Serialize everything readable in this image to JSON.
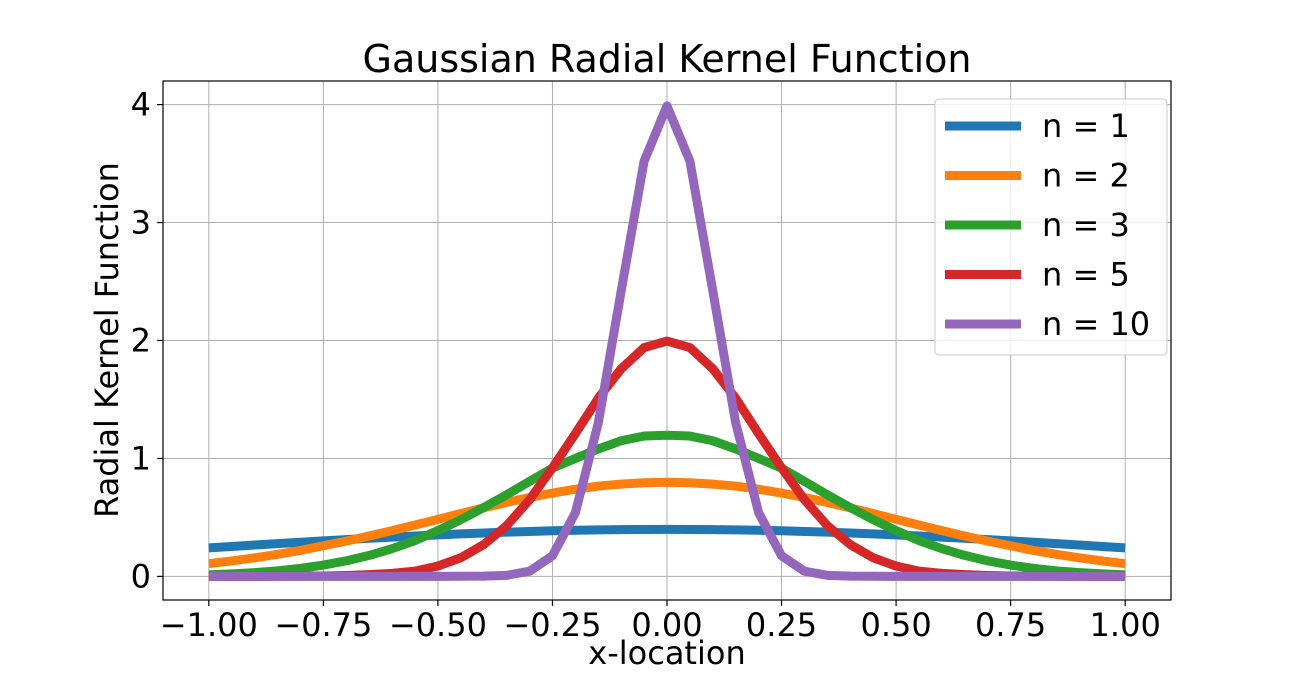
{
  "chart_data": {
    "type": "line",
    "title": "Gaussian Radial Kernel Function",
    "xlabel": "x-location",
    "ylabel": "Radial Kernel Function",
    "xlim": [
      -1.1,
      1.1
    ],
    "ylim": [
      -0.2,
      4.2
    ],
    "xticks": [
      -1.0,
      -0.75,
      -0.5,
      -0.25,
      0.0,
      0.25,
      0.5,
      0.75,
      1.0
    ],
    "xtick_labels": [
      "−1.00",
      "−0.75",
      "−0.50",
      "−0.25",
      "0.00",
      "0.25",
      "0.50",
      "0.75",
      "1.00"
    ],
    "yticks": [
      0,
      1,
      2,
      3,
      4
    ],
    "ytick_labels": [
      "0",
      "1",
      "2",
      "3",
      "4"
    ],
    "grid": true,
    "legend_position": "top-right",
    "x": [
      -1.0,
      -0.95,
      -0.9,
      -0.85,
      -0.8,
      -0.75,
      -0.7,
      -0.65,
      -0.6,
      -0.55,
      -0.5,
      -0.45,
      -0.4,
      -0.35,
      -0.3,
      -0.25,
      -0.2,
      -0.15,
      -0.1,
      -0.05,
      0.0,
      0.05,
      0.1,
      0.15,
      0.2,
      0.25,
      0.3,
      0.35,
      0.4,
      0.45,
      0.5,
      0.55,
      0.6,
      0.65,
      0.7,
      0.75,
      0.8,
      0.85,
      0.9,
      0.95,
      1.0
    ],
    "series": [
      {
        "name": "n = 1",
        "color": "#1f77b4",
        "values": [
          0.242,
          0.254,
          0.266,
          0.278,
          0.29,
          0.301,
          0.312,
          0.323,
          0.333,
          0.343,
          0.352,
          0.361,
          0.368,
          0.375,
          0.381,
          0.387,
          0.391,
          0.394,
          0.397,
          0.398,
          0.399,
          0.398,
          0.397,
          0.394,
          0.391,
          0.387,
          0.381,
          0.375,
          0.368,
          0.361,
          0.352,
          0.343,
          0.333,
          0.323,
          0.312,
          0.301,
          0.29,
          0.278,
          0.266,
          0.254,
          0.242
        ]
      },
      {
        "name": "n = 2",
        "color": "#ff7f0e",
        "values": [
          0.108,
          0.131,
          0.158,
          0.187,
          0.22,
          0.26,
          0.299,
          0.343,
          0.388,
          0.436,
          0.484,
          0.533,
          0.581,
          0.627,
          0.669,
          0.707,
          0.739,
          0.766,
          0.782,
          0.794,
          0.798,
          0.794,
          0.782,
          0.766,
          0.739,
          0.707,
          0.669,
          0.627,
          0.581,
          0.533,
          0.484,
          0.436,
          0.388,
          0.343,
          0.299,
          0.26,
          0.22,
          0.187,
          0.158,
          0.131,
          0.108
        ]
      },
      {
        "name": "n = 3",
        "color": "#2ca02c",
        "values": [
          0.013,
          0.021,
          0.032,
          0.047,
          0.068,
          0.096,
          0.132,
          0.178,
          0.235,
          0.303,
          0.389,
          0.481,
          0.584,
          0.692,
          0.806,
          0.918,
          1.0,
          1.08,
          1.15,
          1.19,
          1.197,
          1.19,
          1.15,
          1.08,
          1.0,
          0.918,
          0.806,
          0.692,
          0.584,
          0.481,
          0.389,
          0.303,
          0.235,
          0.178,
          0.132,
          0.096,
          0.068,
          0.047,
          0.032,
          0.021,
          0.013
        ]
      },
      {
        "name": "n = 5",
        "color": "#d62728",
        "values": [
          0.0,
          0.0,
          0.0,
          0.001,
          0.002,
          0.004,
          0.008,
          0.015,
          0.026,
          0.045,
          0.088,
          0.158,
          0.27,
          0.43,
          0.65,
          0.92,
          1.21,
          1.51,
          1.76,
          1.94,
          1.995,
          1.94,
          1.76,
          1.51,
          1.21,
          0.92,
          0.65,
          0.43,
          0.27,
          0.158,
          0.088,
          0.045,
          0.026,
          0.015,
          0.008,
          0.004,
          0.002,
          0.001,
          0.0,
          0.0,
          0.0
        ]
      },
      {
        "name": "n = 10",
        "color": "#9467bd",
        "values": [
          0.0,
          0.0,
          0.0,
          0.0,
          0.0,
          0.0,
          0.0,
          0.0,
          0.0,
          0.0,
          0.0,
          0.001,
          0.002,
          0.009,
          0.044,
          0.175,
          0.54,
          1.3,
          2.42,
          3.52,
          3.989,
          3.52,
          2.42,
          1.3,
          0.54,
          0.175,
          0.044,
          0.009,
          0.002,
          0.001,
          0.0,
          0.0,
          0.0,
          0.0,
          0.0,
          0.0,
          0.0,
          0.0,
          0.0,
          0.0,
          0.0
        ]
      }
    ]
  }
}
